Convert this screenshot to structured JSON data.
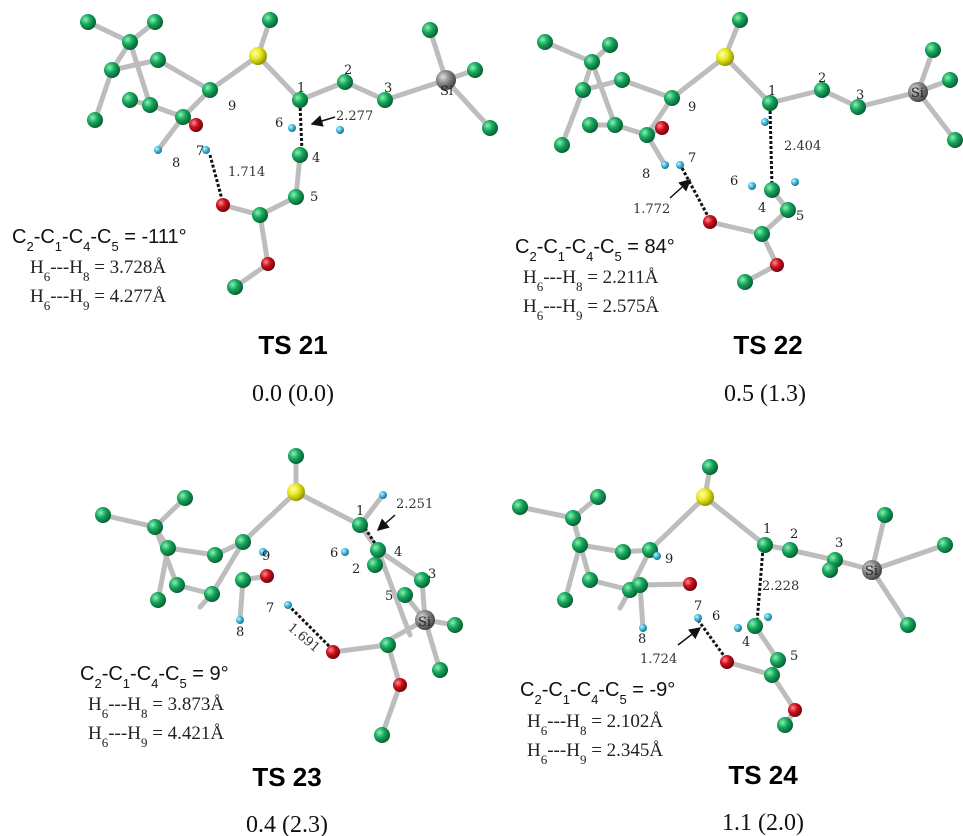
{
  "panels": [
    {
      "id": "ts21",
      "title": "TS 21",
      "energy": "0.0 (0.0)",
      "dihedral_value": "-111°",
      "h6_h8": "3.728Å",
      "h6_h9": "4.277Å",
      "forming_bond": "2.277",
      "hbond": "1.714"
    },
    {
      "id": "ts22",
      "title": "TS 22",
      "energy": "0.5 (1.3)",
      "dihedral_value": "84°",
      "h6_h8": "2.211Å",
      "h6_h9": "2.575Å",
      "forming_bond": "2.404",
      "hbond": "1.772"
    },
    {
      "id": "ts23",
      "title": "TS 23",
      "energy": "0.4 (2.3)",
      "dihedral_value": "9°",
      "h6_h8": "3.873Å",
      "h6_h9": "4.421Å",
      "forming_bond": "2.251",
      "hbond": "1.691"
    },
    {
      "id": "ts24",
      "title": "TS 24",
      "energy": "1.1 (2.0)",
      "dihedral_value": "-9°",
      "h6_h8": "2.102Å",
      "h6_h9": "2.345Å",
      "forming_bond": "2.228",
      "hbond": "1.724"
    }
  ],
  "atom_numbers": [
    "1",
    "2",
    "3",
    "4",
    "5",
    "6",
    "7",
    "8",
    "9"
  ],
  "si_label": "Si",
  "colors": {
    "carbon": "#12a05a",
    "oxygen": "#c8102e",
    "sulfur": "#e6e61a",
    "silicon": "#8a8a8a",
    "hydrogen": "#3fb6d8",
    "bond": "#b9b9b9"
  }
}
